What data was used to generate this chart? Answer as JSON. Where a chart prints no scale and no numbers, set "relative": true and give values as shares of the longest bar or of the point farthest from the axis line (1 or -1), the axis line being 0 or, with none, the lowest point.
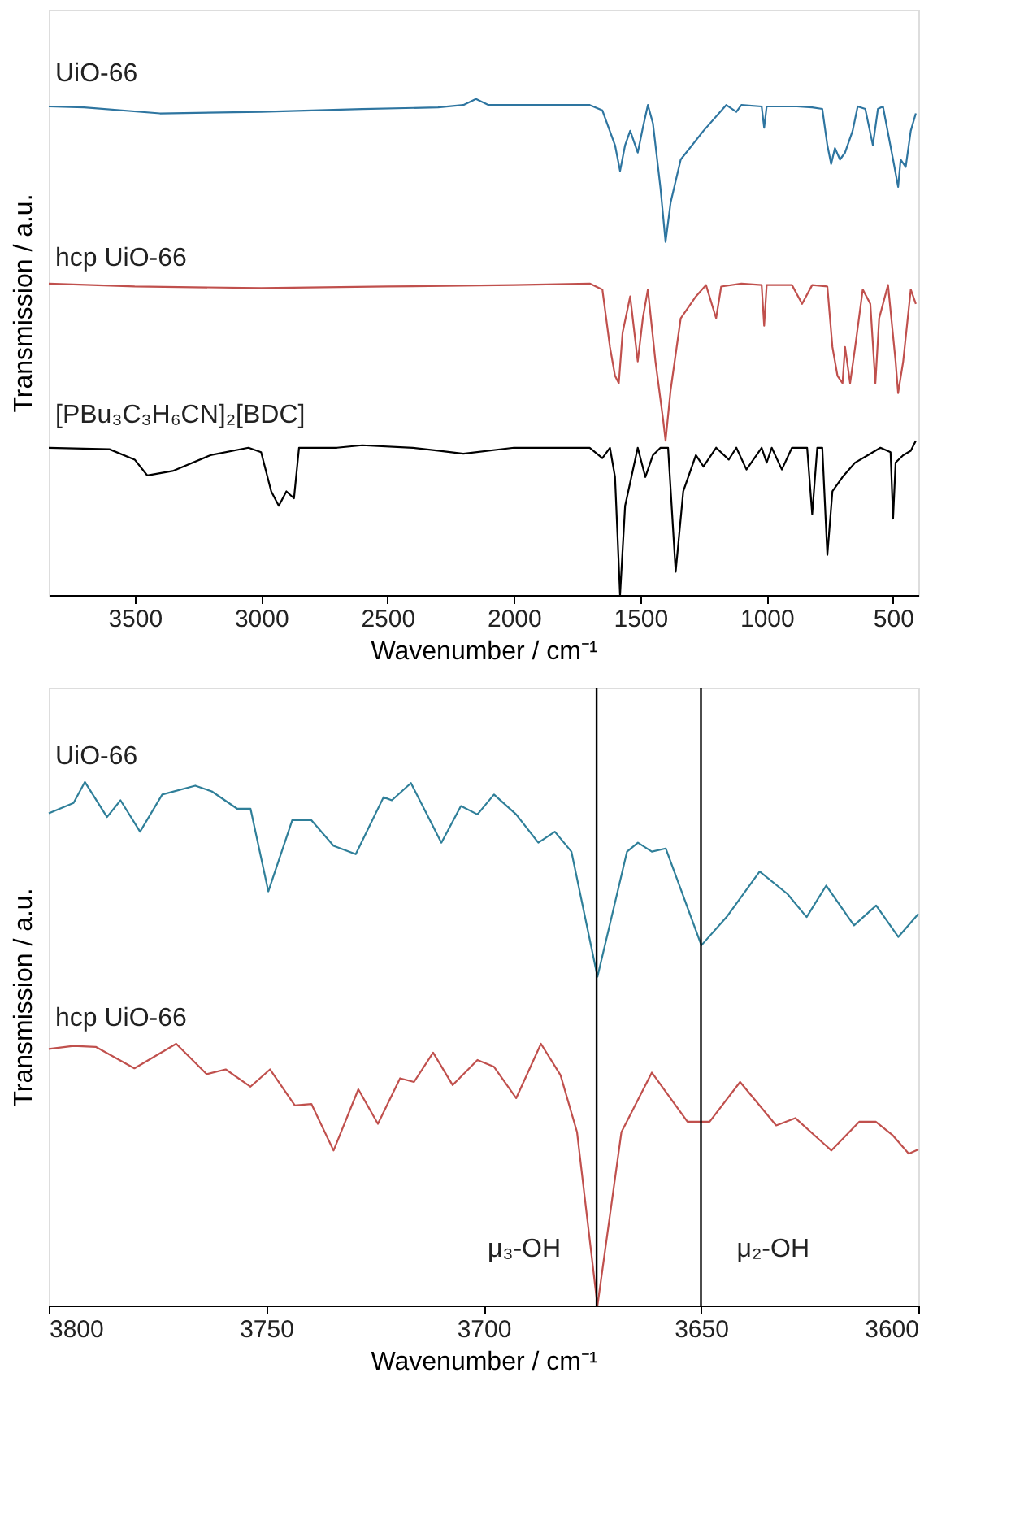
{
  "chart_data": [
    {
      "type": "line",
      "relative": true,
      "xlabel": "Wavenumber / cm⁻¹",
      "ylabel": "Transmission / a.u.",
      "xlim": [
        3840,
        400
      ],
      "xticks": [
        3500,
        3000,
        2500,
        2000,
        1500,
        1000,
        500
      ],
      "marker": "none",
      "line_style": "solid",
      "series": [
        {
          "name": "UiO-66",
          "color": "#2e75a0",
          "x": [
            3840,
            3700,
            3400,
            3000,
            2600,
            2300,
            2200,
            2150,
            2100,
            1800,
            1700,
            1650,
            1600,
            1580,
            1560,
            1540,
            1510,
            1490,
            1470,
            1450,
            1420,
            1400,
            1380,
            1340,
            1250,
            1160,
            1120,
            1100,
            1020,
            1010,
            1000,
            880,
            820,
            780,
            760,
            745,
            730,
            710,
            690,
            660,
            640,
            610,
            580,
            560,
            540,
            500,
            480,
            470,
            450,
            430,
            410
          ],
          "values": [
            0.985,
            0.983,
            0.971,
            0.974,
            0.98,
            0.983,
            0.988,
            1,
            0.988,
            0.988,
            0.988,
            0.977,
            0.907,
            0.855,
            0.907,
            0.936,
            0.892,
            0.942,
            0.988,
            0.951,
            0.82,
            0.712,
            0.791,
            0.878,
            0.936,
            0.988,
            0.974,
            0.988,
            0.985,
            0.942,
            0.985,
            0.985,
            0.983,
            0.98,
            0.907,
            0.869,
            0.901,
            0.878,
            0.892,
            0.936,
            0.985,
            0.98,
            0.907,
            0.98,
            0.985,
            0.878,
            0.823,
            0.878,
            0.863,
            0.936,
            0.971
          ]
        },
        {
          "name": "hcp UiO-66",
          "color": "#c0504d",
          "x": [
            3840,
            3500,
            3000,
            2500,
            2000,
            1700,
            1650,
            1620,
            1600,
            1585,
            1570,
            1540,
            1510,
            1490,
            1470,
            1440,
            1410,
            1400,
            1380,
            1340,
            1280,
            1240,
            1200,
            1180,
            1100,
            1020,
            1010,
            1000,
            900,
            860,
            820,
            760,
            740,
            720,
            700,
            690,
            670,
            650,
            620,
            590,
            570,
            555,
            520,
            490,
            480,
            460,
            430,
            410
          ],
          "values": [
            0.628,
            0.622,
            0.619,
            0.622,
            0.625,
            0.628,
            0.616,
            0.5,
            0.442,
            0.427,
            0.529,
            0.602,
            0.471,
            0.558,
            0.616,
            0.471,
            0.355,
            0.311,
            0.413,
            0.558,
            0.602,
            0.625,
            0.558,
            0.622,
            0.628,
            0.625,
            0.543,
            0.625,
            0.625,
            0.587,
            0.625,
            0.622,
            0.5,
            0.442,
            0.427,
            0.5,
            0.427,
            0.5,
            0.616,
            0.587,
            0.427,
            0.558,
            0.625,
            0.471,
            0.407,
            0.471,
            0.616,
            0.587
          ]
        },
        {
          "name": "[PBu₃C₃H₆CN]₂[BDC]",
          "color": "#000000",
          "x": [
            3840,
            3600,
            3500,
            3450,
            3350,
            3200,
            3050,
            3000,
            2960,
            2930,
            2900,
            2870,
            2850,
            2700,
            2600,
            2400,
            2300,
            2200,
            2000,
            1700,
            1650,
            1620,
            1600,
            1580,
            1560,
            1510,
            1480,
            1450,
            1420,
            1390,
            1360,
            1330,
            1280,
            1250,
            1200,
            1150,
            1120,
            1080,
            1020,
            1000,
            980,
            940,
            900,
            840,
            820,
            800,
            780,
            760,
            740,
            700,
            650,
            600,
            550,
            510,
            500,
            490,
            460,
            430,
            410
          ],
          "values": [
            0.297,
            0.294,
            0.273,
            0.241,
            0.25,
            0.282,
            0.297,
            0.288,
            0.209,
            0.18,
            0.209,
            0.195,
            0.297,
            0.297,
            0.302,
            0.297,
            0.291,
            0.285,
            0.297,
            0.297,
            0.276,
            0.297,
            0.238,
            0,
            0.18,
            0.297,
            0.238,
            0.282,
            0.297,
            0.297,
            0.047,
            0.209,
            0.282,
            0.259,
            0.297,
            0.273,
            0.297,
            0.253,
            0.297,
            0.267,
            0.297,
            0.253,
            0.297,
            0.297,
            0.163,
            0.297,
            0.297,
            0.081,
            0.209,
            0.238,
            0.267,
            0.282,
            0.297,
            0.288,
            0.154,
            0.267,
            0.282,
            0.291,
            0.311
          ]
        }
      ]
    },
    {
      "type": "line",
      "relative": true,
      "xlabel": "Wavenumber / cm⁻¹",
      "ylabel": "Transmission / a.u.",
      "xlim": [
        3800,
        3600
      ],
      "xticks": [
        3800,
        3750,
        3700,
        3650,
        3600
      ],
      "marker": "none",
      "line_style": "solid",
      "ref_lines": [
        {
          "axis": "x",
          "value": 3674,
          "label": "μ₃-OH",
          "color": "#000000"
        },
        {
          "axis": "x",
          "value": 3650,
          "label": "μ₂-OH",
          "color": "#000000"
        }
      ],
      "series": [
        {
          "name": "UiO-66",
          "color": "#2f7f99",
          "x": [
            3800,
            3794.3,
            3791.7,
            3786.6,
            3783.5,
            3779.0,
            3773.9,
            3766.3,
            3762.5,
            3756.7,
            3753.6,
            3749.5,
            3744.0,
            3739.6,
            3734.5,
            3729.4,
            3723.0,
            3721.1,
            3716.7,
            3709.7,
            3705.2,
            3701.4,
            3697.6,
            3692.5,
            3687.4,
            3683.6,
            3679.8,
            3673.8,
            3667.0,
            3664.5,
            3661.3,
            3658.1,
            3649.9,
            3644.1,
            3636.5,
            3630.1,
            3625.7,
            3621.2,
            3614.8,
            3609.7,
            3604.6,
            3600
          ],
          "values": [
            0.94,
            0.96,
            1,
            0.933,
            0.965,
            0.905,
            0.976,
            0.993,
            0.982,
            0.949,
            0.949,
            0.791,
            0.927,
            0.927,
            0.878,
            0.862,
            0.971,
            0.965,
            0.998,
            0.884,
            0.954,
            0.938,
            0.976,
            0.938,
            0.884,
            0.905,
            0.867,
            0.628,
            0.867,
            0.884,
            0.867,
            0.873,
            0.688,
            0.742,
            0.829,
            0.786,
            0.742,
            0.802,
            0.726,
            0.764,
            0.704,
            0.748
          ]
        },
        {
          "name": "hcp UiO-66",
          "color": "#c0504d",
          "x": [
            3800,
            3794.3,
            3789.2,
            3780.3,
            3770.7,
            3763.7,
            3759.3,
            3753.6,
            3749.1,
            3743.4,
            3739.6,
            3734.5,
            3728.8,
            3724.3,
            3719.2,
            3716.0,
            3711.6,
            3707.1,
            3701.4,
            3697.6,
            3692.5,
            3686.8,
            3682.3,
            3678.5,
            3673.8,
            3668.3,
            3661.3,
            3653.1,
            3648.0,
            3641.0,
            3632.7,
            3628.3,
            3620.0,
            3613.6,
            3609.8,
            3606.0,
            3602.2,
            3600
          ],
          "values": [
            0.49,
            0.496,
            0.494,
            0.453,
            0.5,
            0.442,
            0.451,
            0.418,
            0.451,
            0.382,
            0.385,
            0.296,
            0.413,
            0.347,
            0.434,
            0.427,
            0.483,
            0.421,
            0.469,
            0.456,
            0.396,
            0.5,
            0.44,
            0.331,
            0,
            0.331,
            0.445,
            0.351,
            0.351,
            0.427,
            0.344,
            0.358,
            0.296,
            0.351,
            0.351,
            0.326,
            0.29,
            0.298
          ]
        }
      ]
    }
  ]
}
